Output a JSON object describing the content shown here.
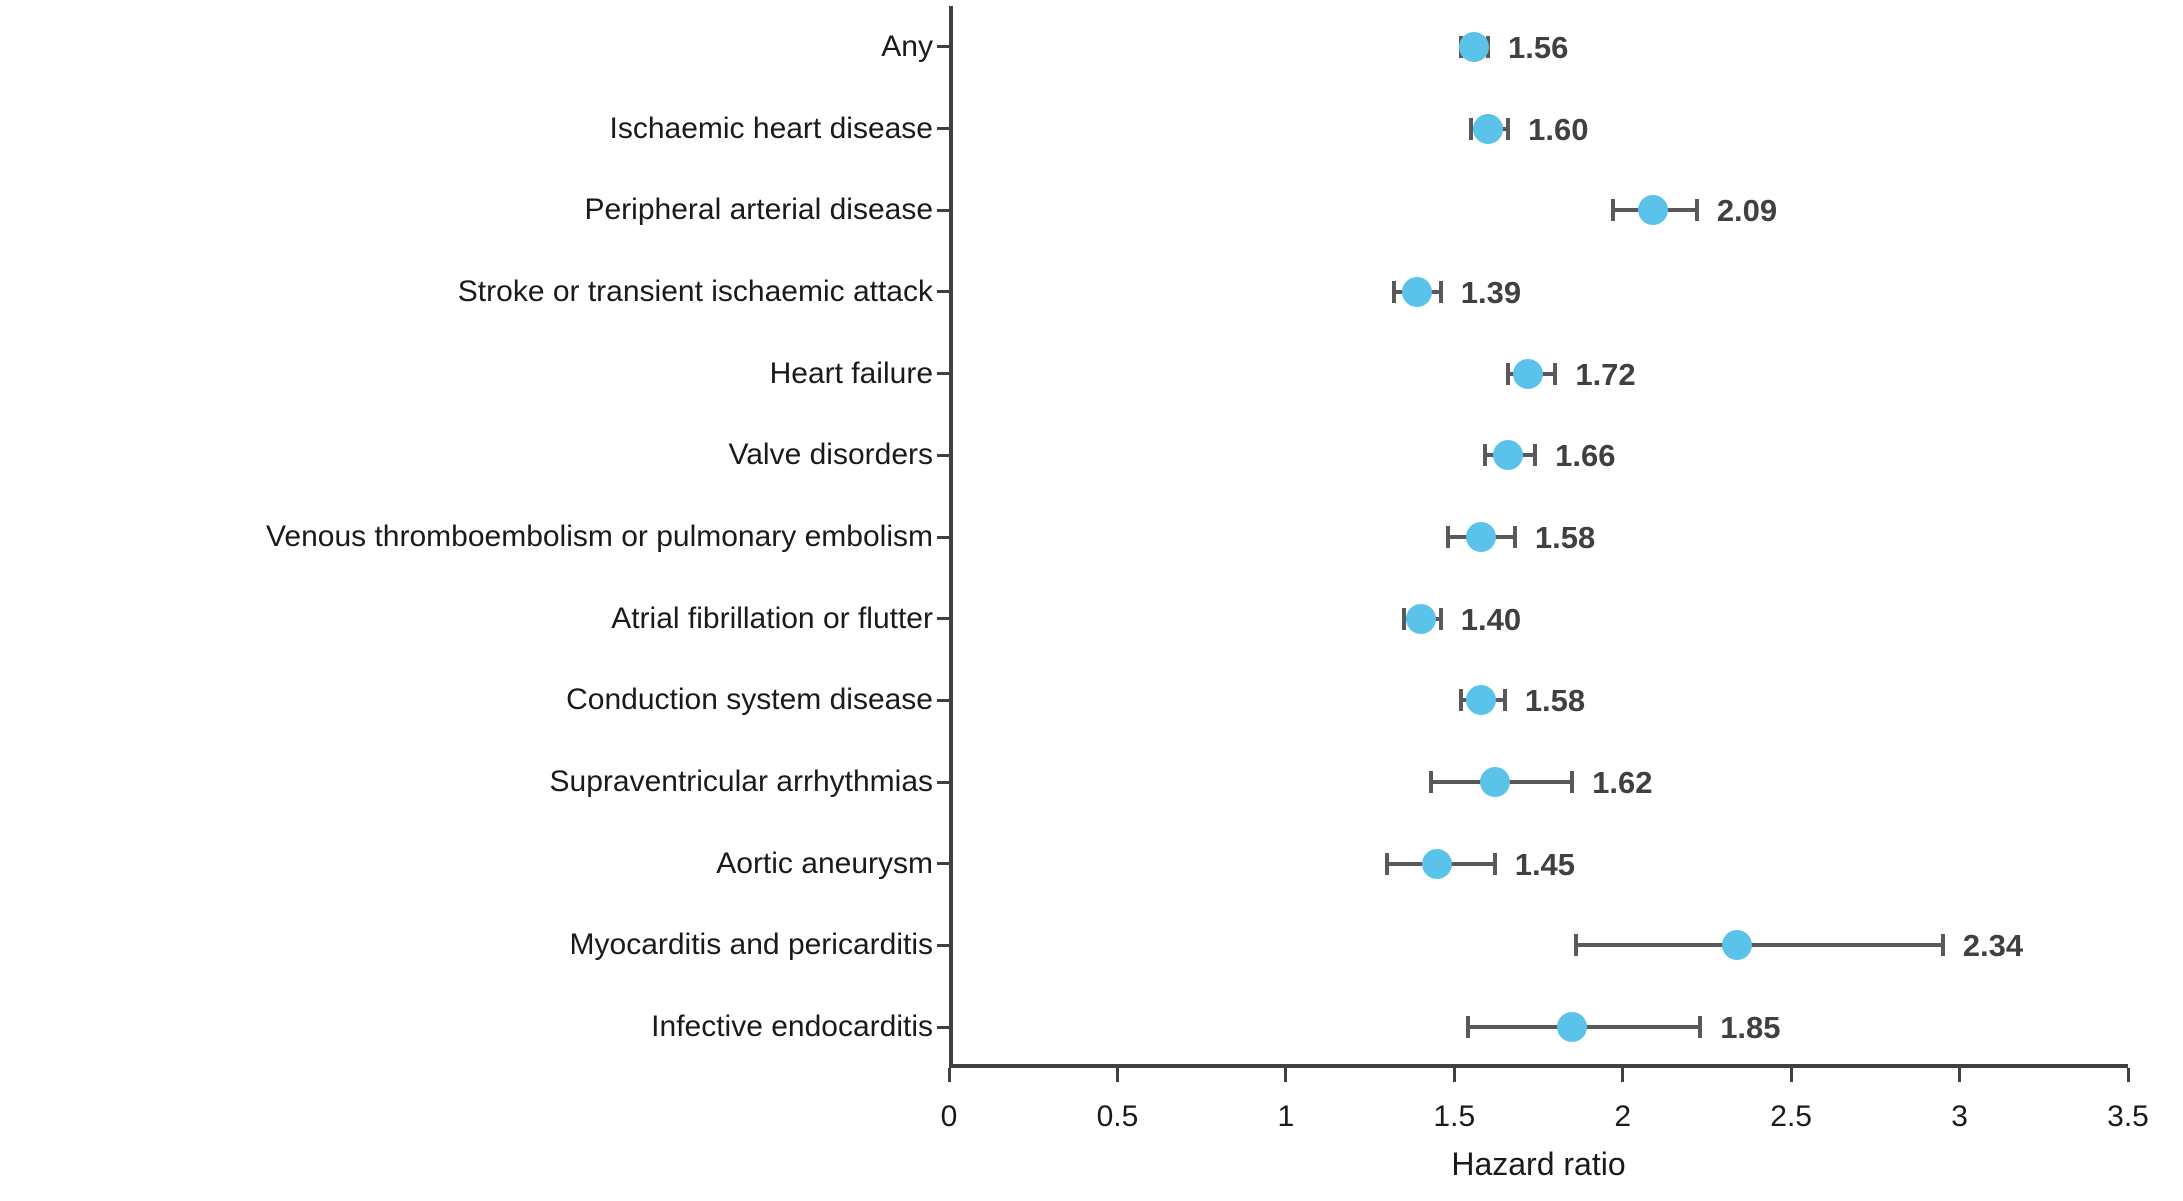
{
  "chart_data": {
    "type": "scatter",
    "variant": "forest-plot",
    "title": "",
    "xlabel": "Hazard ratio",
    "ylabel": "",
    "xlim": [
      0,
      3.5
    ],
    "xticks": [
      0,
      0.5,
      1,
      1.5,
      2,
      2.5,
      3,
      3.5
    ],
    "xtick_labels": [
      "0",
      "0.5",
      "1",
      "1.5",
      "2",
      "2.5",
      "3",
      "3.5"
    ],
    "grid": false,
    "legend_position": "none",
    "categories": [
      "Any",
      "Ischaemic heart disease",
      "Peripheral arterial disease",
      "Stroke or transient ischaemic attack",
      "Heart failure",
      "Valve disorders",
      "Venous thromboembolism or pulmonary embolism",
      "Atrial fibrillation or flutter",
      "Conduction system disease",
      "Supraventricular arrhythmias",
      "Aortic aneurysm",
      "Myocarditis and pericarditis",
      "Infective endocarditis"
    ],
    "series": [
      {
        "name": "Hazard ratio",
        "values": [
          1.56,
          1.6,
          2.09,
          1.39,
          1.72,
          1.66,
          1.58,
          1.4,
          1.58,
          1.62,
          1.45,
          2.34,
          1.85
        ],
        "ci_lower": [
          1.52,
          1.55,
          1.97,
          1.32,
          1.66,
          1.59,
          1.48,
          1.35,
          1.52,
          1.43,
          1.3,
          1.86,
          1.54
        ],
        "ci_upper": [
          1.6,
          1.66,
          2.22,
          1.46,
          1.8,
          1.74,
          1.68,
          1.46,
          1.65,
          1.85,
          1.62,
          2.95,
          2.23
        ],
        "value_labels": [
          "1.56",
          "1.60",
          "2.09",
          "1.39",
          "1.72",
          "1.66",
          "1.58",
          "1.40",
          "1.58",
          "1.62",
          "1.45",
          "2.34",
          "1.85"
        ]
      }
    ],
    "colors": {
      "marker": "#5BC2E9",
      "errorbar": "#595959",
      "axis": "#404040",
      "value_label": "#404040",
      "text": "#1a1a1a",
      "background": "#ffffff"
    }
  }
}
